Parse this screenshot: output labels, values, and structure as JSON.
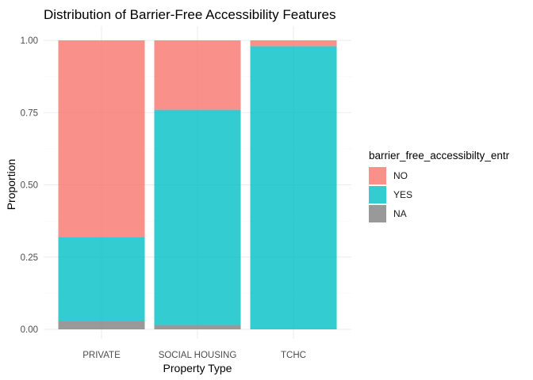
{
  "chart_data": {
    "type": "bar",
    "stacked": true,
    "title": "Distribution of Barrier-Free Accessibility Features",
    "xlabel": "Property Type",
    "ylabel": "Proportion",
    "ylim": [
      0,
      1
    ],
    "yticks": [
      "0.00",
      "0.25",
      "0.50",
      "0.75",
      "1.00"
    ],
    "grid": true,
    "legend_position": "right",
    "legend_title": "barrier_free_accessibilty_entr",
    "categories": [
      "PRIVATE",
      "SOCIAL HOUSING",
      "TCHC"
    ],
    "series": [
      {
        "name": "NO",
        "color": "#F8766D",
        "values": [
          0.68,
          0.24,
          0.02
        ]
      },
      {
        "name": "YES",
        "color": "#00BFC4",
        "values": [
          0.29,
          0.745,
          0.98
        ]
      },
      {
        "name": "NA",
        "color": "#808080",
        "values": [
          0.03,
          0.015,
          0.0
        ]
      }
    ]
  }
}
